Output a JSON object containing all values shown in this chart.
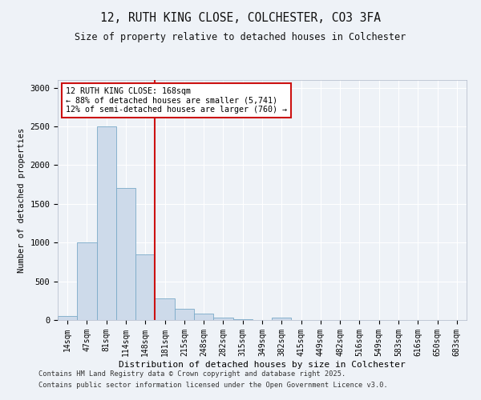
{
  "title1": "12, RUTH KING CLOSE, COLCHESTER, CO3 3FA",
  "title2": "Size of property relative to detached houses in Colchester",
  "xlabel": "Distribution of detached houses by size in Colchester",
  "ylabel": "Number of detached properties",
  "categories": [
    "14sqm",
    "47sqm",
    "81sqm",
    "114sqm",
    "148sqm",
    "181sqm",
    "215sqm",
    "248sqm",
    "282sqm",
    "315sqm",
    "349sqm",
    "382sqm",
    "415sqm",
    "449sqm",
    "482sqm",
    "516sqm",
    "549sqm",
    "583sqm",
    "616sqm",
    "650sqm",
    "683sqm"
  ],
  "values": [
    50,
    1000,
    2500,
    1700,
    850,
    280,
    140,
    80,
    30,
    10,
    5,
    30,
    3,
    2,
    0,
    0,
    0,
    0,
    0,
    0,
    0
  ],
  "bar_color": "#cddaea",
  "bar_edge_color": "#7aaac8",
  "vline_color": "#cc1111",
  "annotation_text": "12 RUTH KING CLOSE: 168sqm\n← 88% of detached houses are smaller (5,741)\n12% of semi-detached houses are larger (760) →",
  "annotation_box_color": "#ffffff",
  "annotation_box_edge": "#cc1111",
  "ylim": [
    0,
    3100
  ],
  "yticks": [
    0,
    500,
    1000,
    1500,
    2000,
    2500,
    3000
  ],
  "bg_color": "#eef2f7",
  "grid_color": "#ffffff",
  "footer1": "Contains HM Land Registry data © Crown copyright and database right 2025.",
  "footer2": "Contains public sector information licensed under the Open Government Licence v3.0."
}
